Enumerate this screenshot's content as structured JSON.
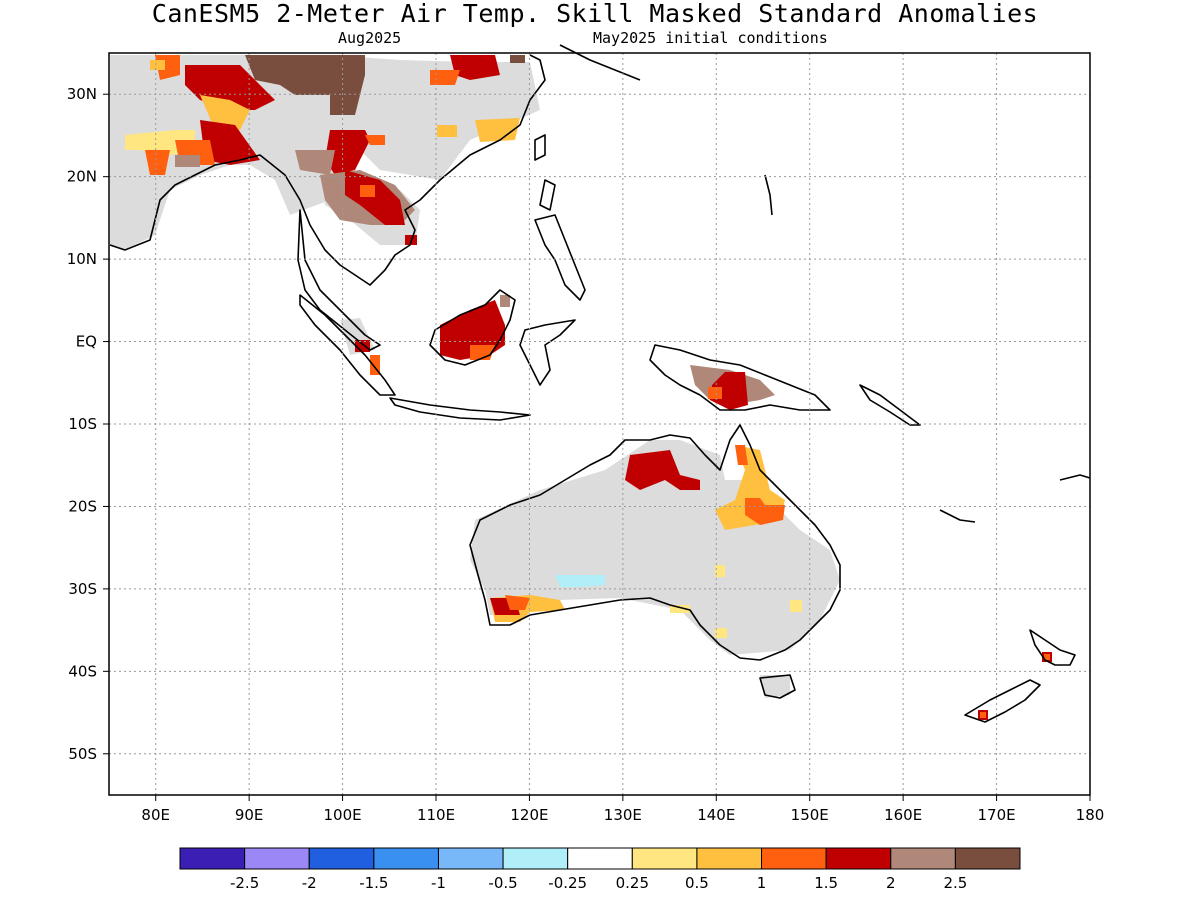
{
  "title": "CanESM5 2-Meter Air Temp. Skill Masked Standard Anomalies",
  "valid_month": "Aug2025",
  "init_label": "May2025 initial conditions",
  "map": {
    "lon_range": [
      75,
      180
    ],
    "lat_range": [
      -55,
      35
    ],
    "lat_ticks": [
      {
        "lat": 30,
        "label": "30N"
      },
      {
        "lat": 20,
        "label": "20N"
      },
      {
        "lat": 10,
        "label": "10N"
      },
      {
        "lat": 0,
        "label": "EQ"
      },
      {
        "lat": -10,
        "label": "10S"
      },
      {
        "lat": -20,
        "label": "20S"
      },
      {
        "lat": -30,
        "label": "30S"
      },
      {
        "lat": -40,
        "label": "40S"
      },
      {
        "lat": -50,
        "label": "50S"
      }
    ],
    "lon_ticks": [
      {
        "lon": 80,
        "label": "80E"
      },
      {
        "lon": 90,
        "label": "90E"
      },
      {
        "lon": 100,
        "label": "100E"
      },
      {
        "lon": 110,
        "label": "110E"
      },
      {
        "lon": 120,
        "label": "120E"
      },
      {
        "lon": 130,
        "label": "130E"
      },
      {
        "lon": 140,
        "label": "140E"
      },
      {
        "lon": 150,
        "label": "150E"
      },
      {
        "lon": 160,
        "label": "160E"
      },
      {
        "lon": 170,
        "label": "170E"
      },
      {
        "lon": 180,
        "label": "180"
      }
    ],
    "grid": "dotted",
    "masked_color": "#dcdcdc"
  },
  "colorbar": {
    "colors": [
      "#3b1fb5",
      "#9b87f5",
      "#2060e0",
      "#3a90f0",
      "#78b8f8",
      "#b0eef8",
      "#ffffff",
      "#ffe680",
      "#ffc040",
      "#ff6010",
      "#c00000",
      "#b0887a",
      "#7a4e3e"
    ],
    "labels": [
      "-2.5",
      "-2",
      "-1.5",
      "-1",
      "-0.5",
      "-0.25",
      "0.25",
      "0.5",
      "1",
      "1.5",
      "2",
      "2.5"
    ]
  }
}
